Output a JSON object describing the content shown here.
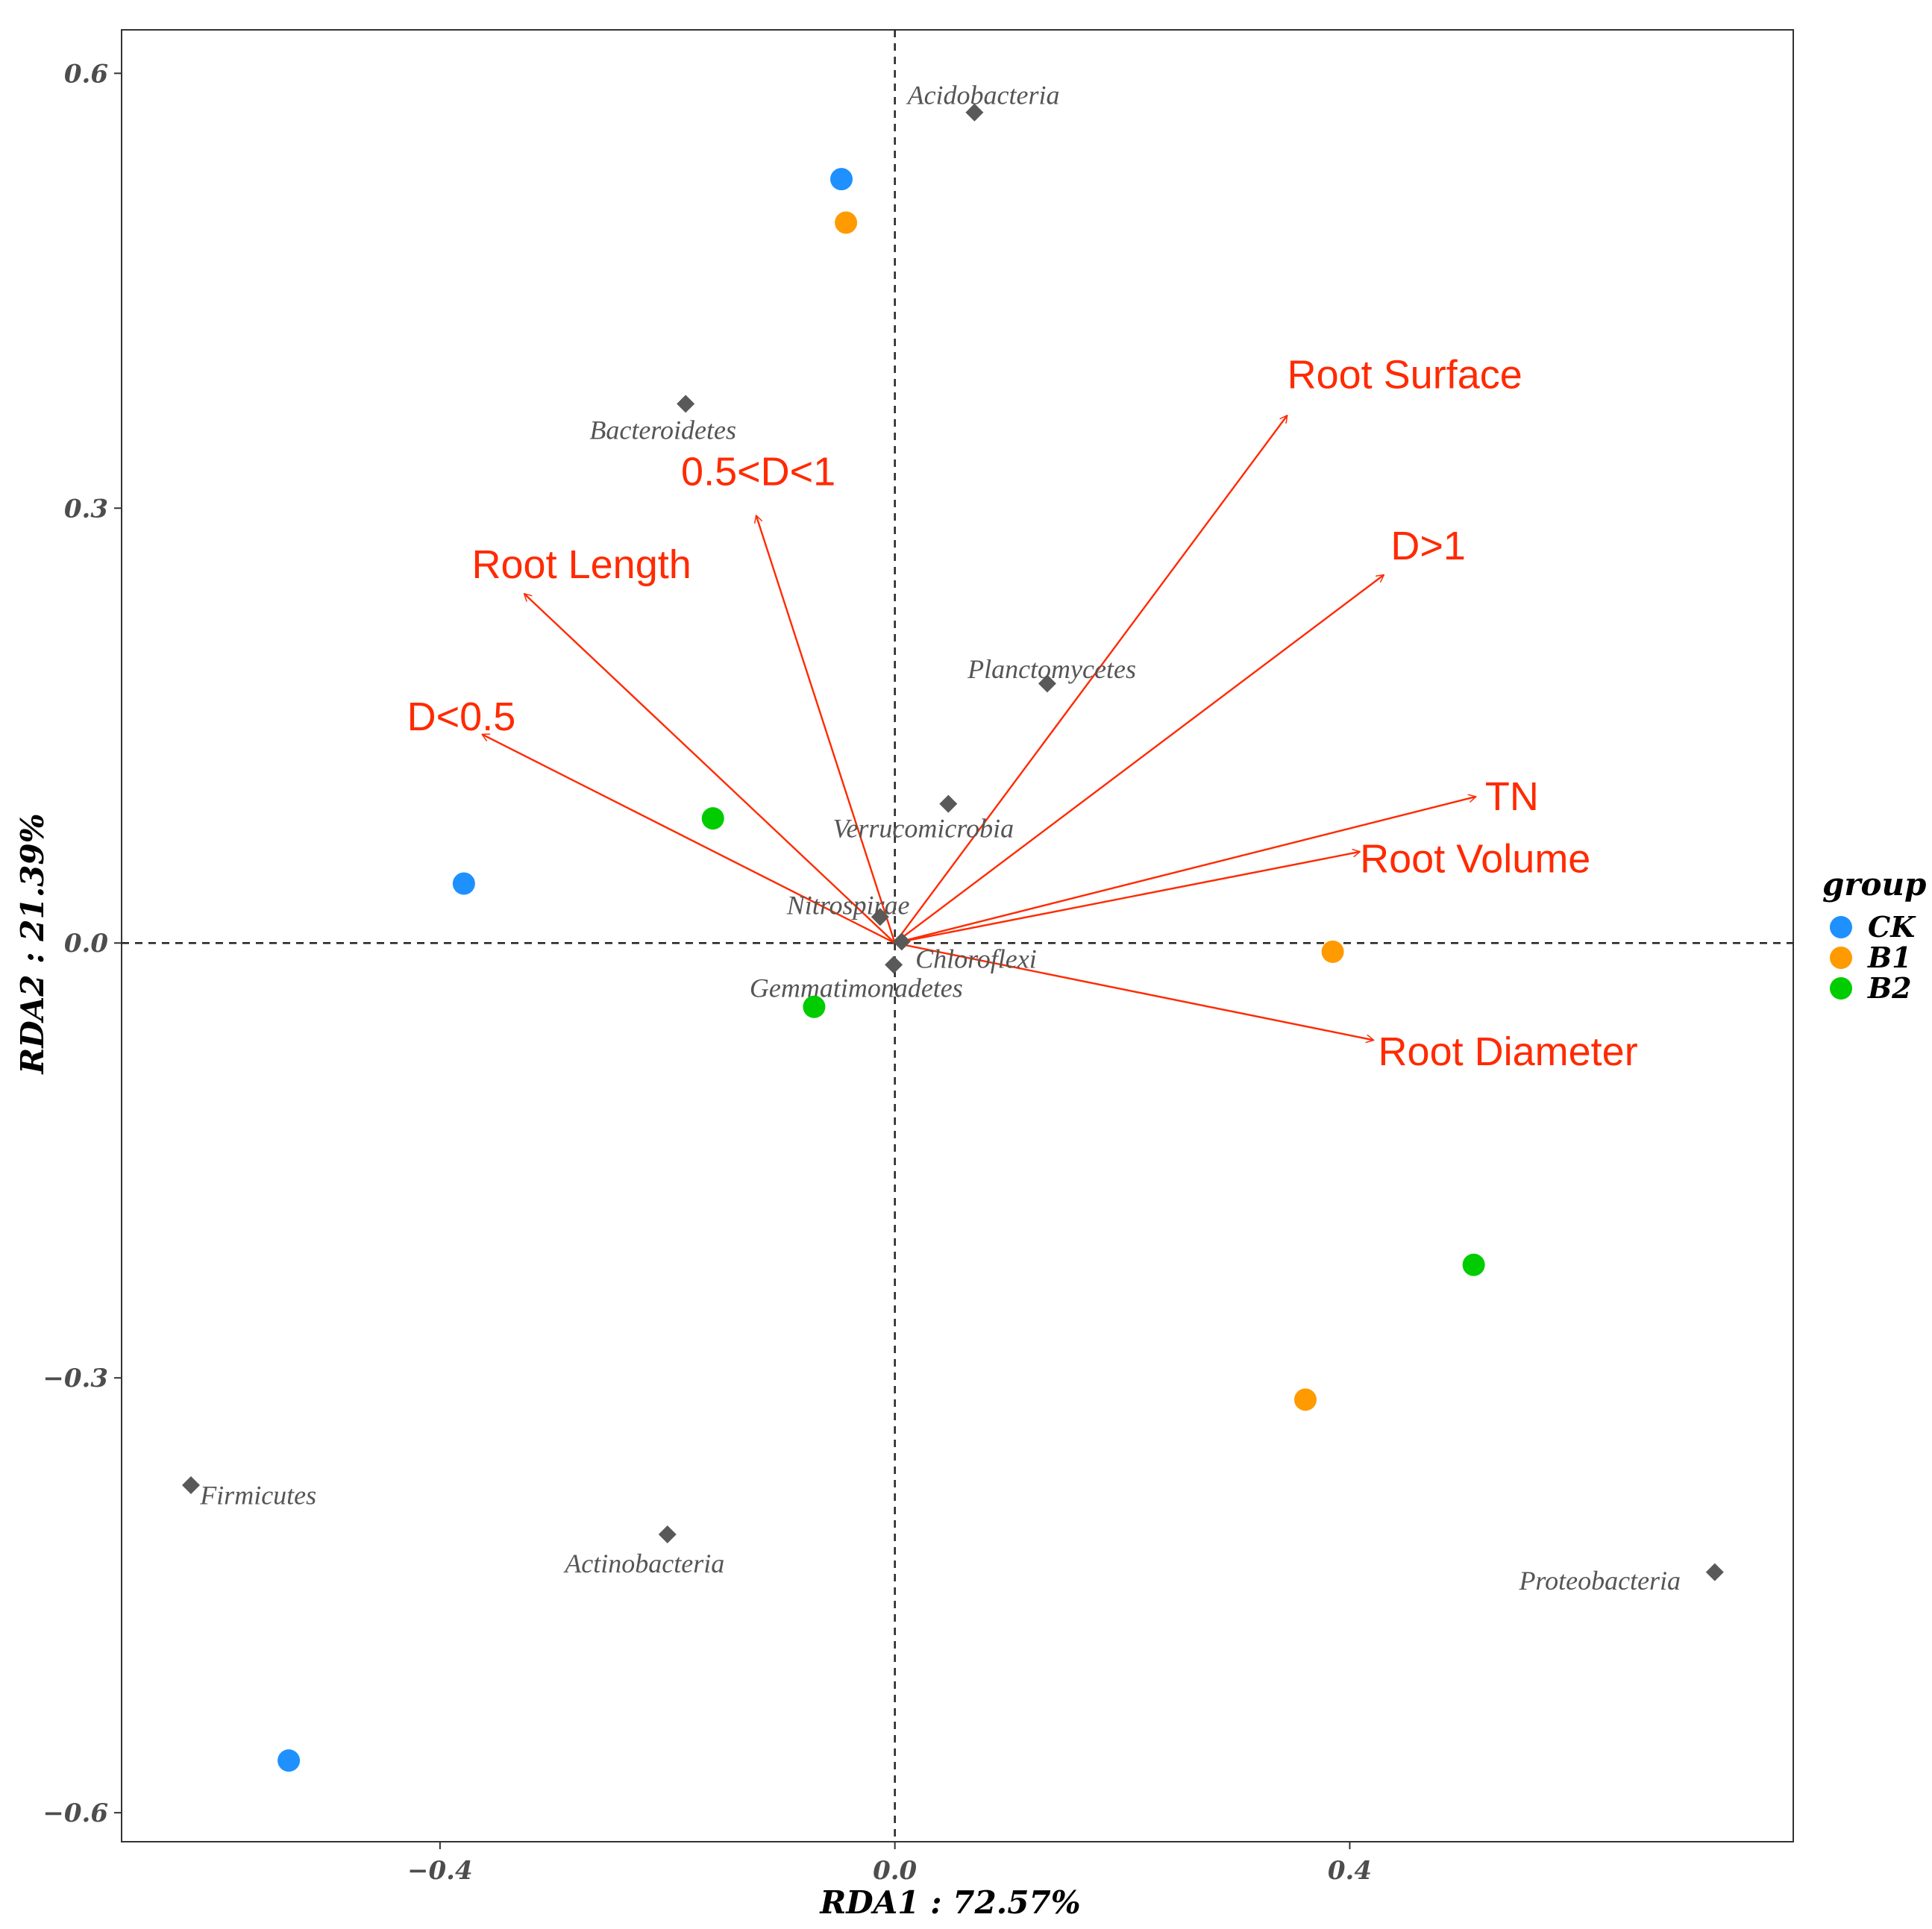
{
  "chart_data": {
    "type": "scatter",
    "subtype": "rda_biplot",
    "xlabel": "RDA1 : 72.57%",
    "ylabel": "RDA2 : 21.39%",
    "xlim": [
      -0.68,
      0.79
    ],
    "ylim": [
      -0.62,
      0.63
    ],
    "x_ticks": [
      -0.4,
      0.0,
      0.4
    ],
    "x_tick_labels": [
      "−0.4",
      "0.0",
      "0.4"
    ],
    "y_ticks": [
      -0.6,
      -0.3,
      0.0,
      0.3,
      0.6
    ],
    "y_tick_labels": [
      "−0.6",
      "−0.3",
      "0.0",
      "0.3",
      "0.6"
    ],
    "grid": false,
    "legend": {
      "title": "group",
      "position": "right",
      "entries": [
        {
          "name": "CK",
          "color": "#1e90ff"
        },
        {
          "name": "B1",
          "color": "#ff9a00"
        },
        {
          "name": "B2",
          "color": "#00cc00"
        }
      ]
    },
    "samples": [
      {
        "group": "CK",
        "x": -0.047,
        "y": 0.527
      },
      {
        "group": "B1",
        "x": -0.043,
        "y": 0.497
      },
      {
        "group": "CK",
        "x": -0.379,
        "y": 0.041
      },
      {
        "group": "B2",
        "x": -0.16,
        "y": 0.086
      },
      {
        "group": "B2",
        "x": -0.071,
        "y": -0.044
      },
      {
        "group": "B1",
        "x": 0.385,
        "y": -0.006
      },
      {
        "group": "B2",
        "x": 0.509,
        "y": -0.222
      },
      {
        "group": "B1",
        "x": 0.361,
        "y": -0.315
      },
      {
        "group": "CK",
        "x": -0.533,
        "y": -0.564
      }
    ],
    "species": [
      {
        "name": "Acidobacteria",
        "x": 0.07,
        "y": 0.573,
        "label_anchor": "middle",
        "label_dx": 0.008,
        "label_dy": 0.012
      },
      {
        "name": "Bacteroidetes",
        "x": -0.184,
        "y": 0.372,
        "label_anchor": "middle",
        "label_dx": -0.02,
        "label_dy": -0.018
      },
      {
        "name": "Planctomycetes",
        "x": 0.134,
        "y": 0.179,
        "label_anchor": "middle",
        "label_dx": 0.004,
        "label_dy": 0.01
      },
      {
        "name": "Verrucomicrobia",
        "x": 0.047,
        "y": 0.096,
        "label_anchor": "middle",
        "label_dx": -0.022,
        "label_dy": -0.017
      },
      {
        "name": "Nitrospirae",
        "x": -0.013,
        "y": 0.018,
        "label_anchor": "middle",
        "label_dx": -0.028,
        "label_dy": 0.008
      },
      {
        "name": "Chloroflexi",
        "x": 0.006,
        "y": 0.001,
        "label_anchor": "start",
        "label_dx": 0.012,
        "label_dy": -0.012
      },
      {
        "name": "Gemmatimonadetes",
        "x": -0.001,
        "y": -0.015,
        "label_anchor": "middle",
        "label_dx": -0.033,
        "label_dy": -0.016
      },
      {
        "name": "Firmicutes",
        "x": -0.619,
        "y": -0.374,
        "label_anchor": "start",
        "label_dx": 0.008,
        "label_dy": -0.007
      },
      {
        "name": "Actinobacteria",
        "x": -0.2,
        "y": -0.408,
        "label_anchor": "middle",
        "label_dx": -0.02,
        "label_dy": -0.02
      },
      {
        "name": "Proteobacteria",
        "x": 0.721,
        "y": -0.434,
        "label_anchor": "end",
        "label_dx": -0.03,
        "label_dy": -0.006
      }
    ],
    "env_vectors": [
      {
        "name": "Root Surface",
        "x": 0.345,
        "y": 0.364,
        "label_anchor": "start",
        "label_dx": 0.0,
        "label_dy": 0.028
      },
      {
        "name": "0.5<D<1",
        "x": -0.122,
        "y": 0.295,
        "label_anchor": "start",
        "label_dx": -0.066,
        "label_dy": 0.03
      },
      {
        "name": "Root Length",
        "x": -0.326,
        "y": 0.241,
        "label_anchor": "start",
        "label_dx": -0.046,
        "label_dy": 0.02
      },
      {
        "name": "D>1",
        "x": 0.43,
        "y": 0.254,
        "label_anchor": "start",
        "label_dx": 0.006,
        "label_dy": 0.02
      },
      {
        "name": "D<0.5",
        "x": -0.363,
        "y": 0.144,
        "label_anchor": "start",
        "label_dx": -0.066,
        "label_dy": 0.012
      },
      {
        "name": "TN",
        "x": 0.511,
        "y": 0.101,
        "label_anchor": "start",
        "label_dx": 0.008,
        "label_dy": 0.0
      },
      {
        "name": "Root Volume",
        "x": 0.409,
        "y": 0.063,
        "label_anchor": "start",
        "label_dx": 0.0,
        "label_dy": -0.005
      },
      {
        "name": "Root Diameter",
        "x": 0.421,
        "y": -0.067,
        "label_anchor": "start",
        "label_dx": 0.004,
        "label_dy": -0.008
      }
    ]
  }
}
